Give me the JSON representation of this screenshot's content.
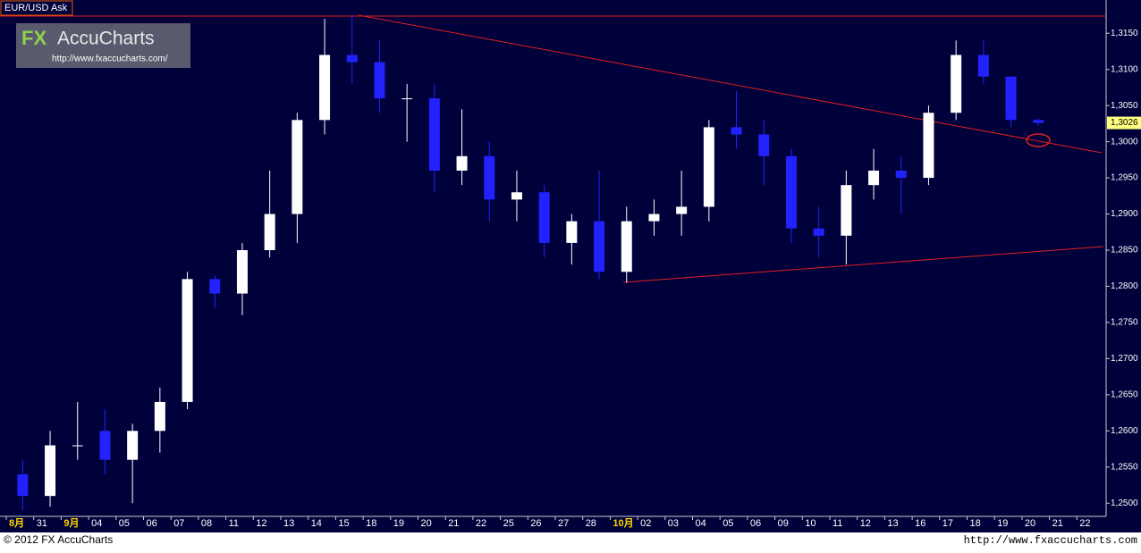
{
  "chart_data": {
    "type": "candlestick",
    "title": "EUR/USD Ask",
    "categories": [
      "8月",
      "31",
      "9月",
      "04",
      "05",
      "06",
      "07",
      "08",
      "11",
      "12",
      "13",
      "14",
      "15",
      "18",
      "19",
      "20",
      "21",
      "22",
      "25",
      "26",
      "27",
      "28",
      "10月",
      "02",
      "03",
      "04",
      "05",
      "06",
      "09",
      "10",
      "11",
      "12",
      "13",
      "16",
      "17",
      "18",
      "19",
      "20",
      "21",
      "22"
    ],
    "open": [
      1.254,
      1.251,
      1.258,
      1.26,
      1.256,
      1.26,
      1.264,
      1.281,
      1.279,
      1.285,
      1.29,
      1.303,
      1.312,
      1.311,
      1.306,
      1.306,
      1.296,
      1.298,
      1.292,
      1.293,
      1.286,
      1.289,
      1.282,
      1.289,
      1.29,
      1.291,
      1.302,
      1.301,
      1.298,
      1.288,
      1.287,
      1.294,
      1.296,
      1.295,
      1.304,
      1.312,
      1.309,
      1.303,
      null,
      null
    ],
    "high": [
      1.256,
      1.26,
      1.264,
      1.263,
      1.261,
      1.266,
      1.282,
      1.2815,
      1.286,
      1.296,
      1.304,
      1.317,
      1.3175,
      1.314,
      1.308,
      1.308,
      1.3045,
      1.3,
      1.296,
      1.294,
      1.29,
      1.296,
      1.291,
      1.292,
      1.296,
      1.303,
      1.307,
      1.303,
      1.299,
      1.291,
      1.296,
      1.299,
      1.298,
      1.305,
      1.314,
      1.314,
      1.309,
      1.3032,
      null,
      null
    ],
    "low": [
      1.249,
      1.2495,
      1.256,
      1.254,
      1.25,
      1.257,
      1.263,
      1.277,
      1.276,
      1.284,
      1.286,
      1.301,
      1.308,
      1.304,
      1.3,
      1.293,
      1.294,
      1.289,
      1.289,
      1.284,
      1.283,
      1.281,
      1.2805,
      1.287,
      1.287,
      1.289,
      1.299,
      1.294,
      1.286,
      1.284,
      1.283,
      1.292,
      1.29,
      1.294,
      1.303,
      1.308,
      1.302,
      1.3022,
      null,
      null
    ],
    "close": [
      1.251,
      1.258,
      1.258,
      1.256,
      1.26,
      1.264,
      1.281,
      1.279,
      1.285,
      1.29,
      1.303,
      1.312,
      1.311,
      1.306,
      1.306,
      1.296,
      1.298,
      1.292,
      1.293,
      1.286,
      1.289,
      1.282,
      1.289,
      1.29,
      1.291,
      1.302,
      1.301,
      1.298,
      1.288,
      1.287,
      1.294,
      1.296,
      1.295,
      1.304,
      1.312,
      1.309,
      1.303,
      1.3026,
      null,
      null
    ],
    "up_color": "#ffffff",
    "down_color": "#2222ff",
    "ylim": [
      1.2483,
      1.3196
    ],
    "yticks": [
      {
        "value": 1.25,
        "label": "1,2500"
      },
      {
        "value": 1.255,
        "label": "1,2550"
      },
      {
        "value": 1.26,
        "label": "1,2600"
      },
      {
        "value": 1.265,
        "label": "1,2650"
      },
      {
        "value": 1.27,
        "label": "1,2700"
      },
      {
        "value": 1.275,
        "label": "1,2750"
      },
      {
        "value": 1.28,
        "label": "1,2800"
      },
      {
        "value": 1.285,
        "label": "1,2850"
      },
      {
        "value": 1.29,
        "label": "1,2900"
      },
      {
        "value": 1.295,
        "label": "1,2950"
      },
      {
        "value": 1.3,
        "label": "1,3000"
      },
      {
        "value": 1.305,
        "label": "1,3050"
      },
      {
        "value": 1.31,
        "label": "1,3100"
      },
      {
        "value": 1.315,
        "label": "1,3150"
      }
    ],
    "last_price": {
      "value": 1.3026,
      "label": "1,3026"
    }
  },
  "logo": {
    "prefix": "FX",
    "brand": "AccuCharts",
    "url": "http://www.fxaccucharts.com/"
  },
  "footer": {
    "copyright": "© 2012 FX AccuCharts",
    "url": "http://www.fxaccucharts.com"
  }
}
